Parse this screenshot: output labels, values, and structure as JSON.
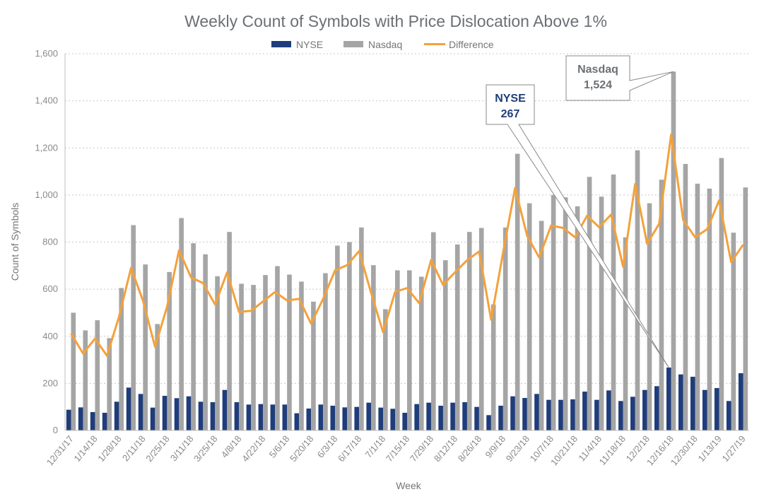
{
  "chart_data": {
    "type": "bar",
    "title": "Weekly Count of Symbols with Price Dislocation Above 1%",
    "xlabel": "Week",
    "ylabel": "Count of Symbols",
    "ylim": [
      0,
      1600
    ],
    "y_ticks": [
      "0",
      "200",
      "400",
      "600",
      "800",
      "1,000",
      "1,200",
      "1,400",
      "1,600"
    ],
    "grid": true,
    "legend_position": "top",
    "x_tick_labels": [
      "12/31/17",
      "1/14/18",
      "1/28/18",
      "2/11/18",
      "2/25/18",
      "3/11/18",
      "3/25/18",
      "4/8/18",
      "4/22/18",
      "5/6/18",
      "5/20/18",
      "6/3/18",
      "6/17/18",
      "7/1/18",
      "7/15/18",
      "7/29/18",
      "8/12/18",
      "8/26/18",
      "9/9/18",
      "9/23/18",
      "10/7/18",
      "10/21/18",
      "11/4/18",
      "11/18/18",
      "12/2/18",
      "12/16/18",
      "12/30/18",
      "1/13/19",
      "1/27/19"
    ],
    "categories": [
      "12/31/17",
      "1/7/18",
      "1/14/18",
      "1/21/18",
      "1/28/18",
      "2/4/18",
      "2/11/18",
      "2/18/18",
      "2/25/18",
      "3/4/18",
      "3/11/18",
      "3/18/18",
      "3/25/18",
      "4/1/18",
      "4/8/18",
      "4/15/18",
      "4/22/18",
      "4/29/18",
      "5/6/18",
      "5/13/18",
      "5/20/18",
      "5/27/18",
      "6/3/18",
      "6/10/18",
      "6/17/18",
      "6/24/18",
      "7/1/18",
      "7/8/18",
      "7/15/18",
      "7/22/18",
      "7/29/18",
      "8/5/18",
      "8/12/18",
      "8/19/18",
      "8/26/18",
      "9/2/18",
      "9/9/18",
      "9/16/18",
      "9/23/18",
      "9/30/18",
      "10/7/18",
      "10/14/18",
      "10/21/18",
      "10/28/18",
      "11/4/18",
      "11/11/18",
      "11/18/18",
      "11/25/18",
      "12/2/18",
      "12/9/18",
      "12/16/18",
      "12/23/18",
      "12/30/18",
      "1/6/19",
      "1/13/19",
      "1/20/19",
      "1/27/19"
    ],
    "series": [
      {
        "name": "NYSE",
        "kind": "bar",
        "color": "#1f3d7a",
        "values": [
          88,
          98,
          78,
          75,
          122,
          182,
          155,
          97,
          147,
          137,
          145,
          122,
          120,
          172,
          120,
          110,
          112,
          110,
          110,
          73,
          93,
          110,
          105,
          98,
          100,
          118,
          97,
          92,
          75,
          112,
          118,
          105,
          118,
          120,
          100,
          65,
          105,
          145,
          138,
          155,
          130,
          130,
          132,
          165,
          130,
          170,
          125,
          143,
          172,
          188,
          267,
          238,
          228,
          172,
          180,
          125,
          243
        ]
      },
      {
        "name": "Nasdaq",
        "kind": "bar",
        "color": "#a5a5a5",
        "values": [
          500,
          425,
          468,
          392,
          605,
          872,
          705,
          452,
          673,
          902,
          795,
          748,
          655,
          843,
          623,
          618,
          660,
          698,
          662,
          632,
          547,
          668,
          785,
          800,
          862,
          702,
          515,
          680,
          680,
          653,
          842,
          723,
          790,
          843,
          860,
          535,
          862,
          1175,
          965,
          890,
          1000,
          990,
          952,
          1077,
          993,
          1087,
          820,
          1190,
          965,
          1065,
          1524,
          1132,
          1048,
          1027,
          1157,
          840,
          1032
        ]
      },
      {
        "name": "Difference",
        "kind": "line",
        "color": "#f4a13a",
        "values": [
          412,
          327,
          390,
          317,
          483,
          690,
          550,
          355,
          526,
          765,
          650,
          626,
          535,
          671,
          503,
          508,
          548,
          588,
          552,
          559,
          454,
          558,
          680,
          702,
          762,
          584,
          418,
          588,
          605,
          541,
          724,
          618,
          672,
          723,
          760,
          470,
          757,
          1030,
          827,
          735,
          870,
          860,
          820,
          912,
          863,
          917,
          695,
          1047,
          793,
          877,
          1257,
          894,
          820,
          855,
          977,
          715,
          789
        ]
      }
    ],
    "annotations": [
      {
        "series": "NYSE",
        "label": "NYSE",
        "value_text": "267",
        "category": "12/16/18"
      },
      {
        "series": "Nasdaq",
        "label": "Nasdaq",
        "value_text": "1,524",
        "category": "12/16/18"
      }
    ]
  }
}
